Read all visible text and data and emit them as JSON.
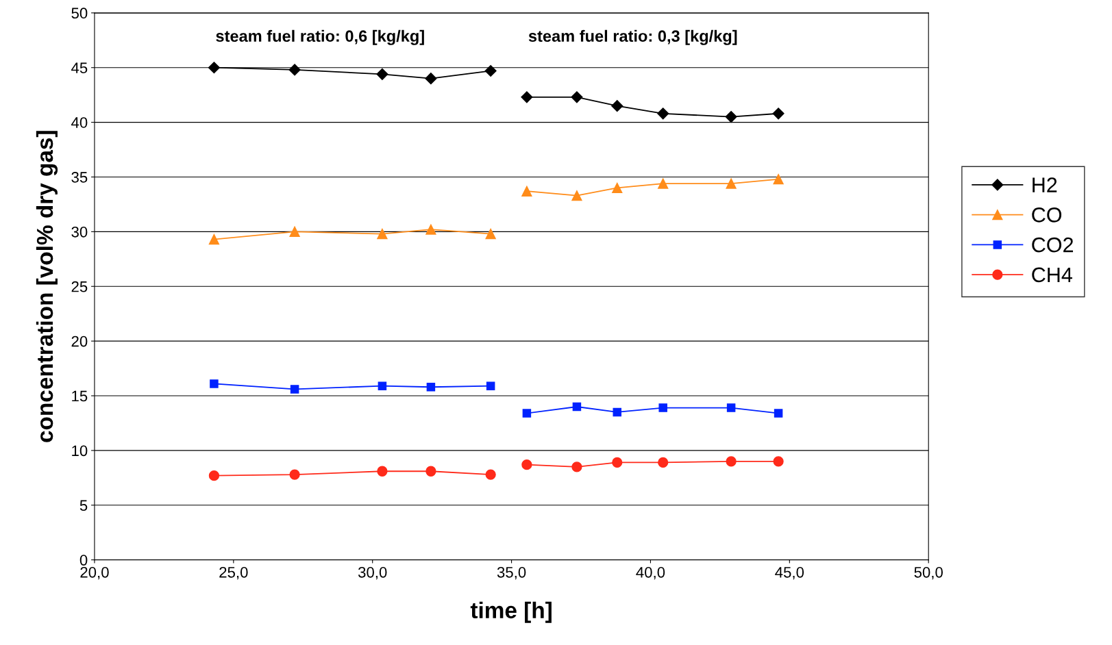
{
  "chart_data": {
    "type": "line",
    "xlabel": "time [h]",
    "ylabel": "concentration [vol% dry gas]",
    "annotations": [
      "steam fuel ratio: 0,6 [kg/kg]",
      "steam fuel ratio: 0,3 [kg/kg]"
    ],
    "xlim": [
      20,
      50
    ],
    "xticks": [
      {
        "value": 20,
        "label": "20,0"
      },
      {
        "value": 25,
        "label": "25,0"
      },
      {
        "value": 30,
        "label": "30,0"
      },
      {
        "value": 35,
        "label": "35,0"
      },
      {
        "value": 40,
        "label": "40,0"
      },
      {
        "value": 45,
        "label": "45,0"
      },
      {
        "value": 50,
        "label": "50,0"
      }
    ],
    "ylim": [
      0,
      50
    ],
    "yticks": [
      0,
      5,
      10,
      15,
      20,
      25,
      30,
      35,
      40,
      45,
      50
    ],
    "grid": "y",
    "legend": "right",
    "series": [
      {
        "name": "H2",
        "color": "#000000",
        "marker": "diamond",
        "x": [
          24.3,
          27.2,
          30.35,
          32.1,
          34.25
        ],
        "values": [
          45.0,
          44.8,
          44.4,
          44.0,
          44.7
        ]
      },
      {
        "color": "#000000",
        "marker": "diamond",
        "x": [
          35.55,
          37.35,
          38.8,
          40.45,
          42.9,
          44.6
        ],
        "values": [
          42.3,
          42.3,
          41.5,
          40.8,
          40.5,
          40.8
        ]
      },
      {
        "name": "CO",
        "color": "#ff8c1a",
        "marker": "triangle",
        "x": [
          24.3,
          27.2,
          30.35,
          32.1,
          34.25
        ],
        "values": [
          29.3,
          30.0,
          29.8,
          30.2,
          29.8
        ]
      },
      {
        "color": "#ff8c1a",
        "marker": "triangle",
        "x": [
          35.55,
          37.35,
          38.8,
          40.45,
          42.9,
          44.6
        ],
        "values": [
          33.7,
          33.3,
          34.0,
          34.4,
          34.4,
          34.8
        ]
      },
      {
        "name": "CO2",
        "color": "#0022ff",
        "marker": "square",
        "x": [
          24.3,
          27.2,
          30.35,
          32.1,
          34.25
        ],
        "values": [
          16.1,
          15.6,
          15.9,
          15.8,
          15.9
        ]
      },
      {
        "color": "#0022ff",
        "marker": "square",
        "x": [
          35.55,
          37.35,
          38.8,
          40.45,
          42.9,
          44.6
        ],
        "values": [
          13.4,
          14.0,
          13.5,
          13.9,
          13.9,
          13.4
        ]
      },
      {
        "name": "CH4",
        "color": "#ff2a1a",
        "marker": "circle",
        "x": [
          24.3,
          27.2,
          30.35,
          32.1,
          34.25
        ],
        "values": [
          7.7,
          7.8,
          8.1,
          8.1,
          7.8
        ]
      },
      {
        "color": "#ff2a1a",
        "marker": "circle",
        "x": [
          35.55,
          37.35,
          38.8,
          40.45,
          42.9,
          44.6
        ],
        "values": [
          8.7,
          8.5,
          8.9,
          8.9,
          9.0,
          9.0
        ]
      }
    ]
  }
}
